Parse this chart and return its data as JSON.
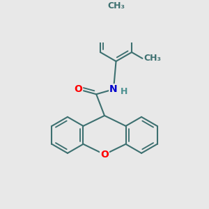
{
  "background_color": "#e8e8e8",
  "bond_color": "#3d7070",
  "bond_width": 1.5,
  "atom_colors": {
    "O": "#ff0000",
    "N": "#0000cc",
    "H": "#4a9090",
    "C": "#3d7070"
  },
  "font_size_atom": 10,
  "font_size_H": 9,
  "font_size_methyl": 9
}
